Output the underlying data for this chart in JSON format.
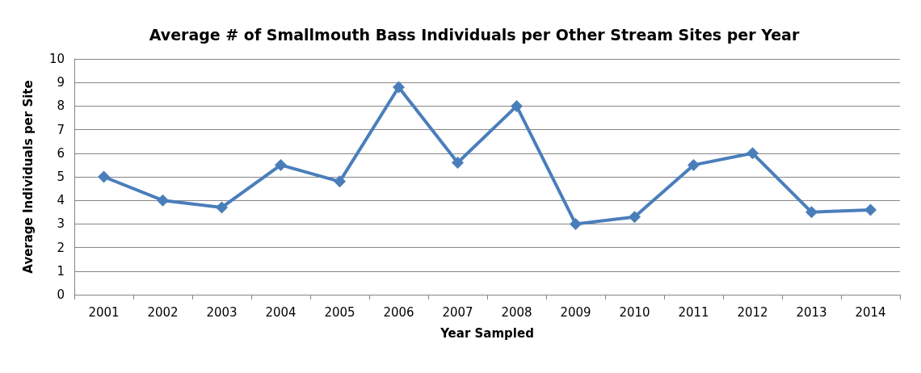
{
  "chart_data": {
    "type": "line",
    "title": "Average # of Smallmouth Bass Individuals per Other Stream Sites per Year",
    "xlabel": "Year Sampled",
    "ylabel": "Average Individuals per Site",
    "categories": [
      "2001",
      "2002",
      "2003",
      "2004",
      "2005",
      "2006",
      "2007",
      "2008",
      "2009",
      "2010",
      "2011",
      "2012",
      "2013",
      "2014"
    ],
    "series": [
      {
        "color": "#4a7ebb",
        "values": [
          5.0,
          4.0,
          3.7,
          5.5,
          4.8,
          8.8,
          5.6,
          8.0,
          3.0,
          3.3,
          5.5,
          6.0,
          3.5,
          3.6
        ]
      }
    ],
    "ylim": [
      0,
      10
    ],
    "yticks": [
      0,
      1,
      2,
      3,
      4,
      5,
      6,
      7,
      8,
      9,
      10
    ],
    "grid": "y",
    "marker": "diamond",
    "line_style": "solid"
  }
}
